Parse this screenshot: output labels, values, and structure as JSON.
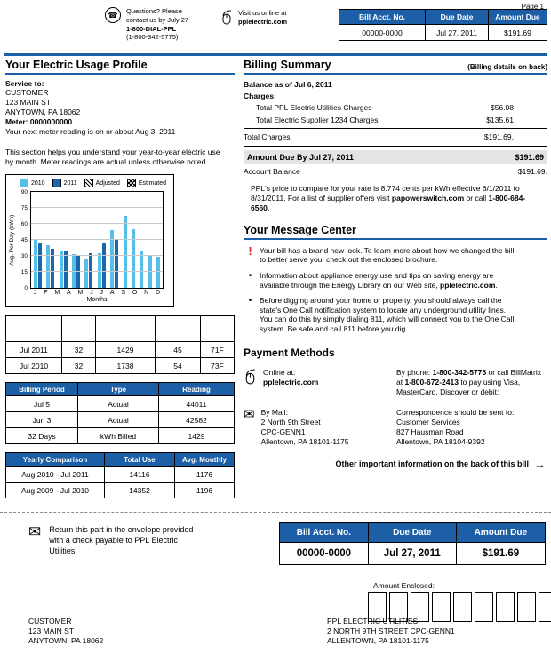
{
  "page_label": "Page 1",
  "colors": {
    "brand_blue": "#1d5fa7",
    "alert_red": "#d42a2a",
    "highlight_gray": "#e4e4e4",
    "bar_2010": "#55bfe8",
    "bar_2011": "#1a67ad"
  },
  "icons": {
    "phone_glyph": "☎",
    "envelope_glyph": "✉",
    "arrow": "→",
    "mouse": "mouse-icon",
    "alert_marker": "!"
  },
  "header": {
    "contact": {
      "line1": "Questions? Please",
      "line2": "contact us by July 27",
      "phone": "1-800-DIAL-PPL",
      "phone_alt": "(1-800-342-5775)"
    },
    "online": {
      "line1": "Visit us online at",
      "site": "pplelectric.com"
    },
    "account_table": {
      "headers": [
        "Bill Acct. No.",
        "Due Date",
        "Amount Due"
      ],
      "rows": [
        [
          "00000-0000",
          "Jul 27, 2011",
          "$191.69"
        ]
      ]
    }
  },
  "usage_profile": {
    "title": "Your Electric Usage Profile",
    "service_to_label": "Service to:",
    "service_to": [
      "CUSTOMER",
      "123 MAIN ST",
      "ANYTOWN, PA 18062"
    ],
    "meter_label": "Meter: 0000000000",
    "next_reading": "Your next meter reading is on or about Aug 3, 2011",
    "description": "This section helps you understand your year-to-year electric use by month. Meter readings are actual unless otherwise noted.",
    "usage_table": {
      "rows": [
        [
          "",
          "",
          "",
          "",
          ""
        ],
        [
          "Jul 2011",
          "32",
          "1429",
          "45",
          "71F"
        ],
        [
          "Jul 2010",
          "32",
          "1738",
          "54",
          "73F"
        ]
      ]
    },
    "billing_period_table": {
      "headers": [
        "Billing Period",
        "Type",
        "Reading"
      ],
      "rows": [
        [
          "Jul 5",
          "Actual",
          "44011"
        ],
        [
          "Jun 3",
          "Actual",
          "42582"
        ],
        [
          "32 Days",
          "kWh Billed",
          "1429"
        ]
      ]
    },
    "yearly_table": {
      "headers": [
        "Yearly Comparison",
        "Total Use",
        "Avg. Monthly"
      ],
      "rows": [
        [
          "Aug 2010 - Jul 2011",
          "14116",
          "1176"
        ],
        [
          "Aug 2009 - Jul 2010",
          "14352",
          "1196"
        ]
      ]
    }
  },
  "chart_data": {
    "type": "bar",
    "title": "",
    "categories": [
      "J",
      "F",
      "M",
      "A",
      "M",
      "J",
      "J",
      "A",
      "S",
      "O",
      "N",
      "D"
    ],
    "series": [
      {
        "name": "2010",
        "color": "#55bfe8",
        "values": [
          45,
          40,
          35,
          32,
          28,
          33,
          54,
          68,
          55,
          35,
          30,
          29
        ]
      },
      {
        "name": "2011",
        "color": "#1a67ad",
        "values": [
          43,
          37,
          34,
          31,
          33,
          42,
          45,
          null,
          null,
          null,
          null,
          null
        ]
      }
    ],
    "legend_extra": [
      {
        "name": "Adjusted",
        "pattern": "diagonal-hatch"
      },
      {
        "name": "Estimated",
        "pattern": "crosshatch"
      }
    ],
    "ylabel": "Avg. Per Day (kWh)",
    "xlabel": "Months",
    "ylim": [
      0,
      90
    ],
    "yticks": [
      0,
      15,
      30,
      45,
      60,
      75,
      90
    ],
    "legend_position": "top",
    "grid": true
  },
  "billing_summary": {
    "title": "Billing Summary",
    "title_note": "(Billing details on back)",
    "balance_heading": "Balance as of Jul 6, 2011",
    "charges_label": "Charges:",
    "charge_rows": [
      {
        "label": "Total PPL Electric Utilities Charges",
        "amount": "$56.08"
      },
      {
        "label": "Total Electric Supplier 1234 Charges",
        "amount": "$135.61"
      }
    ],
    "total_label": "Total Charges.",
    "total_amount": "$191.69.",
    "amount_due_label": "Amount Due By Jul 27, 2011",
    "amount_due": "$191.69",
    "account_balance_label": "Account Balance",
    "account_balance": "$191.69.",
    "price_note": [
      {
        "t": "PPL's price to compare for your rate is 8.774 cents per kWh effective 6/1/2011 to 8/31/2011. For a list of supplier offers visit "
      },
      {
        "t": "papowerswitch.com",
        "b": true
      },
      {
        "t": " or call "
      },
      {
        "t": "1-800-684-6560.",
        "b": true
      }
    ]
  },
  "message_center": {
    "title": "Your Message Center",
    "items": [
      {
        "marker": "!",
        "segments": [
          {
            "t": "Your bill has a brand new look. To learn more about how we changed the bill to better serve you, check out the enclosed brochure."
          }
        ]
      },
      {
        "marker": "•",
        "segments": [
          {
            "t": "Information about appliance energy use and tips on saving energy are available through the Energy Library on our Web site, "
          },
          {
            "t": "pplelectric.com",
            "b": true
          },
          {
            "t": "."
          }
        ]
      },
      {
        "marker": "•",
        "segments": [
          {
            "t": "Before digging around your home or property, you should always call the state's One Call notification system to locate any underground utility lines. You can do this by simply dialing 811, which will connect you to the One Call system. Be safe and call 811 before you dig."
          }
        ]
      }
    ]
  },
  "payment_methods": {
    "title": "Payment Methods",
    "online_label": "Online at:",
    "online_site": "pplelectric.com",
    "by_phone": [
      {
        "t": "By phone: "
      },
      {
        "t": "1-800-342-5775",
        "b": true
      },
      {
        "t": " or call BillMatrix at "
      },
      {
        "t": "1-800-672-2413",
        "b": true
      },
      {
        "t": " to pay using Visa, MasterCard, Discover or debit:"
      }
    ],
    "by_mail_label": "By Mail:",
    "by_mail": [
      "2 North 9th Street",
      "CPC-GENN1",
      "Allentown, PA 18101-1175"
    ],
    "correspondence": [
      "Correspondence should be sent to:",
      "Customer Services",
      "827 Hausman Road",
      "Allentown, PA 18104-9392"
    ],
    "back_note": "Other important information on the back of this bill"
  },
  "stub": {
    "return_note": "Return this part in the envelope provided with a check payable to PPL Electric Utilities",
    "account_table": {
      "headers": [
        "Bill Acct. No.",
        "Due Date",
        "Amount Due"
      ],
      "rows": [
        [
          "00000-0000",
          "Jul 27, 2011",
          "$191.69"
        ]
      ]
    },
    "amount_enclosed_label": "Amount Enclosed:",
    "amount_box_count": 9,
    "customer_address": [
      "CUSTOMER",
      "123 MAIN ST",
      "ANYTOWN, PA 18062"
    ],
    "company_address": [
      "PPL ELECTRIC UTILITIES",
      "2 NORTH 9TH STREET CPC-GENN1",
      "ALLENTOWN, PA 18101-1175"
    ]
  }
}
